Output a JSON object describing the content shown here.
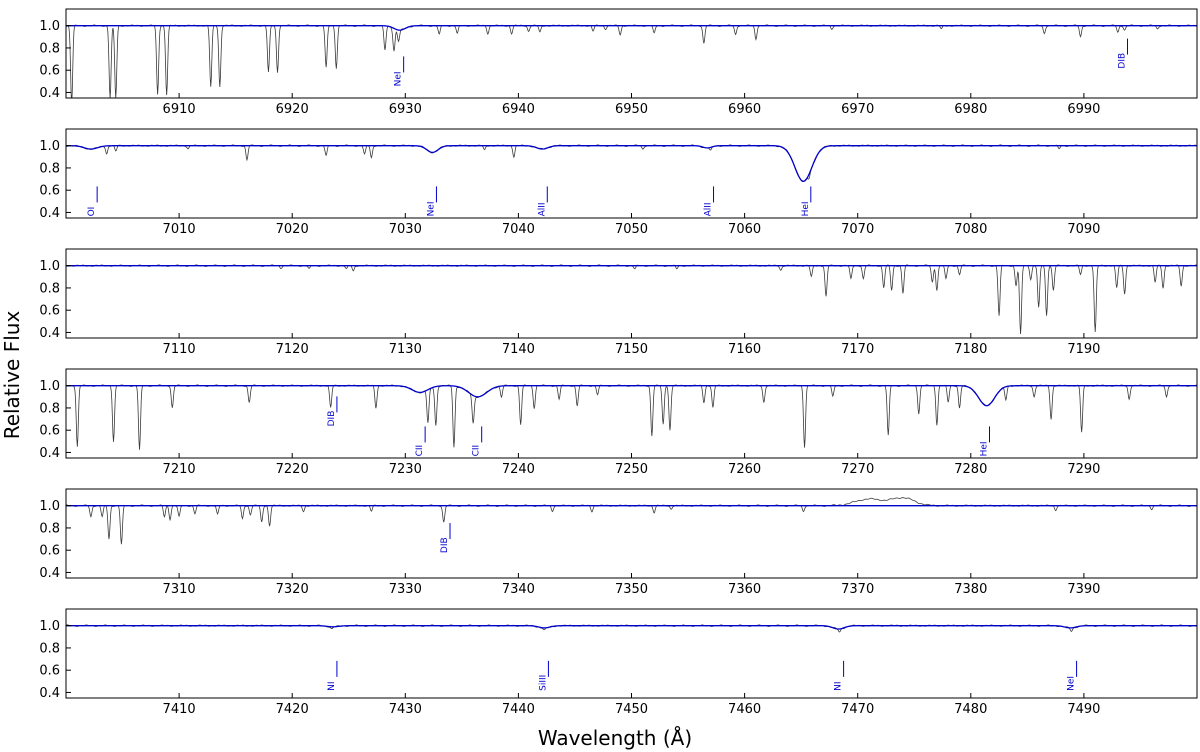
{
  "chart_data": {
    "type": "line",
    "xlabel": "Wavelength (Å)",
    "ylabel": "Relative Flux",
    "series": [
      {
        "color": "#3a3a3a",
        "role": "observed"
      },
      {
        "color": "#0000cc",
        "role": "model"
      }
    ],
    "ytick_labels": [
      "0.4",
      "0.6",
      "0.8",
      "1.0"
    ],
    "panels": [
      {
        "xlim": [
          6900,
          7000
        ],
        "ylim": [
          0.35,
          1.15
        ],
        "xticks": [
          6910,
          6920,
          6930,
          6940,
          6950,
          6960,
          6970,
          6980,
          6990
        ],
        "yticks": [
          0.4,
          0.6,
          0.8,
          1.0
        ],
        "model_lines": [
          {
            "center": 6929.5,
            "depth": 0.04,
            "width": 0.5
          }
        ],
        "telluric": [
          [
            6900.5,
            0.7
          ],
          [
            6903.9,
            0.65
          ],
          [
            6904.4,
            0.65
          ],
          [
            6908.1,
            0.62
          ],
          [
            6908.9,
            0.62
          ],
          [
            6912.8,
            0.55
          ],
          [
            6913.6,
            0.55
          ],
          [
            6917.9,
            0.42
          ],
          [
            6918.7,
            0.42
          ],
          [
            6923.0,
            0.38
          ],
          [
            6923.9,
            0.38
          ],
          [
            6928.2,
            0.22
          ],
          [
            6929.0,
            0.2
          ],
          [
            6929.4,
            0.1
          ],
          [
            6933.0,
            0.08
          ],
          [
            6934.6,
            0.07
          ],
          [
            6937.3,
            0.07
          ],
          [
            6939.4,
            0.07
          ],
          [
            6940.9,
            0.05
          ],
          [
            6941.9,
            0.06
          ],
          [
            6946.6,
            0.05
          ],
          [
            6947.7,
            0.03
          ],
          [
            6949.0,
            0.08
          ],
          [
            6952.0,
            0.07
          ],
          [
            6956.4,
            0.16
          ],
          [
            6959.2,
            0.08
          ],
          [
            6961.0,
            0.12
          ],
          [
            6967.7,
            0.03
          ],
          [
            6977.4,
            0.03
          ],
          [
            6986.5,
            0.07
          ],
          [
            6989.7,
            0.1
          ],
          [
            6993.0,
            0.06
          ],
          [
            6993.6,
            0.04
          ],
          [
            6996.5,
            0.03
          ]
        ],
        "labels": [
          {
            "text": "NeI",
            "x": 6929.5,
            "y": 0.58
          },
          {
            "text": "DIB",
            "x": 6993.5,
            "y": 0.74
          }
        ]
      },
      {
        "xlim": [
          7000,
          7100
        ],
        "ylim": [
          0.35,
          1.15
        ],
        "xticks": [
          7010,
          7020,
          7030,
          7040,
          7050,
          7060,
          7070,
          7080,
          7090
        ],
        "yticks": [
          0.4,
          0.6,
          0.8,
          1.0
        ],
        "model_lines": [
          {
            "center": 7002.2,
            "depth": 0.03,
            "width": 0.6
          },
          {
            "center": 7032.4,
            "depth": 0.06,
            "width": 0.5
          },
          {
            "center": 7042.1,
            "depth": 0.03,
            "width": 0.5
          },
          {
            "center": 7056.7,
            "depth": 0.02,
            "width": 0.4
          },
          {
            "center": 7065.2,
            "depth": 0.32,
            "width": 0.75
          }
        ],
        "telluric": [
          [
            7003.6,
            0.07
          ],
          [
            7004.4,
            0.05
          ],
          [
            7010.8,
            0.03
          ],
          [
            7016.0,
            0.13
          ],
          [
            7023.0,
            0.09
          ],
          [
            7026.4,
            0.08
          ],
          [
            7027.0,
            0.11
          ],
          [
            7037.0,
            0.04
          ],
          [
            7039.6,
            0.1
          ],
          [
            7051.0,
            0.03
          ],
          [
            7057.0,
            0.03
          ],
          [
            7065.7,
            0.04
          ],
          [
            7087.8,
            0.03
          ]
        ],
        "labels": [
          {
            "text": "OI",
            "x": 7002.4,
            "y": 0.49
          },
          {
            "text": "NeI",
            "x": 7032.4,
            "y": 0.49
          },
          {
            "text": "AlII",
            "x": 7042.2,
            "y": 0.49
          },
          {
            "text": "AlII",
            "x": 7056.9,
            "y": 0.49
          },
          {
            "text": "HeI",
            "x": 7065.5,
            "y": 0.49
          }
        ]
      },
      {
        "xlim": [
          7100,
          7200
        ],
        "ylim": [
          0.35,
          1.15
        ],
        "xticks": [
          7110,
          7120,
          7130,
          7140,
          7150,
          7160,
          7170,
          7180,
          7190
        ],
        "yticks": [
          0.4,
          0.6,
          0.8,
          1.0
        ],
        "model_lines": [],
        "telluric": [
          [
            7119.0,
            0.02
          ],
          [
            7121.5,
            0.03
          ],
          [
            7124.8,
            0.03
          ],
          [
            7125.4,
            0.05
          ],
          [
            7150.3,
            0.03
          ],
          [
            7154.0,
            0.03
          ],
          [
            7163.2,
            0.04
          ],
          [
            7165.9,
            0.1
          ],
          [
            7167.2,
            0.28
          ],
          [
            7169.4,
            0.12
          ],
          [
            7170.5,
            0.12
          ],
          [
            7172.3,
            0.2
          ],
          [
            7173.0,
            0.22
          ],
          [
            7174.0,
            0.25
          ],
          [
            7176.6,
            0.15
          ],
          [
            7177.0,
            0.22
          ],
          [
            7177.8,
            0.12
          ],
          [
            7179.0,
            0.08
          ],
          [
            7182.5,
            0.45
          ],
          [
            7184.0,
            0.18
          ],
          [
            7184.4,
            0.62
          ],
          [
            7185.3,
            0.12
          ],
          [
            7186.0,
            0.38
          ],
          [
            7186.7,
            0.45
          ],
          [
            7187.3,
            0.22
          ],
          [
            7189.7,
            0.08
          ],
          [
            7191.0,
            0.6
          ],
          [
            7192.9,
            0.2
          ],
          [
            7193.6,
            0.25
          ],
          [
            7196.3,
            0.15
          ],
          [
            7197.0,
            0.2
          ],
          [
            7198.6,
            0.18
          ]
        ],
        "labels": []
      },
      {
        "xlim": [
          7200,
          7300
        ],
        "ylim": [
          0.35,
          1.15
        ],
        "xticks": [
          7210,
          7220,
          7230,
          7240,
          7250,
          7260,
          7270,
          7280,
          7290
        ],
        "yticks": [
          0.4,
          0.6,
          0.8,
          1.0
        ],
        "model_lines": [
          {
            "center": 7231.3,
            "depth": 0.06,
            "width": 0.7
          },
          {
            "center": 7236.4,
            "depth": 0.1,
            "width": 0.8
          },
          {
            "center": 7281.4,
            "depth": 0.18,
            "width": 0.7
          }
        ],
        "telluric": [
          [
            7201.0,
            0.55
          ],
          [
            7204.2,
            0.5
          ],
          [
            7206.5,
            0.58
          ],
          [
            7209.4,
            0.2
          ],
          [
            7216.2,
            0.15
          ],
          [
            7223.4,
            0.2
          ],
          [
            7227.4,
            0.2
          ],
          [
            7232.0,
            0.3
          ],
          [
            7232.7,
            0.35
          ],
          [
            7234.3,
            0.55
          ],
          [
            7236.0,
            0.25
          ],
          [
            7238.5,
            0.1
          ],
          [
            7240.2,
            0.35
          ],
          [
            7241.4,
            0.2
          ],
          [
            7243.6,
            0.12
          ],
          [
            7245.2,
            0.18
          ],
          [
            7247.0,
            0.08
          ],
          [
            7251.8,
            0.45
          ],
          [
            7252.8,
            0.35
          ],
          [
            7253.4,
            0.4
          ],
          [
            7256.4,
            0.15
          ],
          [
            7257.2,
            0.2
          ],
          [
            7261.7,
            0.15
          ],
          [
            7265.3,
            0.55
          ],
          [
            7267.8,
            0.1
          ],
          [
            7272.7,
            0.45
          ],
          [
            7275.4,
            0.25
          ],
          [
            7277.0,
            0.35
          ],
          [
            7278.0,
            0.15
          ],
          [
            7279.0,
            0.2
          ],
          [
            7283.1,
            0.12
          ],
          [
            7285.6,
            0.1
          ],
          [
            7287.1,
            0.3
          ],
          [
            7289.8,
            0.42
          ],
          [
            7294.0,
            0.12
          ],
          [
            7297.3,
            0.1
          ]
        ],
        "labels": [
          {
            "text": "DIB",
            "x": 7223.6,
            "y": 0.76
          },
          {
            "text": "CII",
            "x": 7231.4,
            "y": 0.49
          },
          {
            "text": "CII",
            "x": 7236.4,
            "y": 0.49
          },
          {
            "text": "HeI",
            "x": 7281.3,
            "y": 0.49
          }
        ]
      },
      {
        "xlim": [
          7300,
          7400
        ],
        "ylim": [
          0.35,
          1.15
        ],
        "xticks": [
          7310,
          7320,
          7330,
          7340,
          7350,
          7360,
          7370,
          7380,
          7390
        ],
        "yticks": [
          0.4,
          0.6,
          0.8,
          1.0
        ],
        "model_lines": [],
        "telluric": [
          [
            7302.2,
            0.1
          ],
          [
            7303.2,
            0.1
          ],
          [
            7303.8,
            0.3
          ],
          [
            7304.9,
            0.35
          ],
          [
            7308.7,
            0.1
          ],
          [
            7309.2,
            0.12
          ],
          [
            7310.0,
            0.1
          ],
          [
            7311.4,
            0.07
          ],
          [
            7313.4,
            0.08
          ],
          [
            7315.6,
            0.12
          ],
          [
            7316.3,
            0.08
          ],
          [
            7317.3,
            0.15
          ],
          [
            7318.0,
            0.18
          ],
          [
            7321.0,
            0.05
          ],
          [
            7327.0,
            0.05
          ],
          [
            7333.4,
            0.15
          ],
          [
            7343.0,
            0.05
          ],
          [
            7346.5,
            0.05
          ],
          [
            7352.0,
            0.06
          ],
          [
            7353.5,
            0.03
          ],
          [
            7365.2,
            0.05
          ],
          [
            7387.5,
            0.04
          ],
          [
            7396.0,
            0.03
          ]
        ],
        "bumps": [
          [
            7371.0,
            0.06,
            1.2
          ],
          [
            7374.0,
            0.07,
            1.0
          ]
        ],
        "labels": [
          {
            "text": "DIB",
            "x": 7333.6,
            "y": 0.7
          }
        ]
      },
      {
        "xlim": [
          7400,
          7500
        ],
        "ylim": [
          0.35,
          1.15
        ],
        "xticks": [
          7410,
          7420,
          7430,
          7440,
          7450,
          7460,
          7470,
          7480,
          7490
        ],
        "yticks": [
          0.4,
          0.6,
          0.8,
          1.0
        ],
        "model_lines": [
          {
            "center": 7423.6,
            "depth": 0.01,
            "width": 0.5
          },
          {
            "center": 7442.3,
            "depth": 0.02,
            "width": 0.5
          },
          {
            "center": 7468.3,
            "depth": 0.03,
            "width": 0.5
          },
          {
            "center": 7488.8,
            "depth": 0.02,
            "width": 0.5
          }
        ],
        "telluric": [
          [
            7423.5,
            0.02
          ],
          [
            7442.3,
            0.02
          ],
          [
            7468.4,
            0.03
          ],
          [
            7488.9,
            0.03
          ]
        ],
        "labels": [
          {
            "text": "NI",
            "x": 7423.6,
            "y": 0.54
          },
          {
            "text": "SiIII",
            "x": 7442.3,
            "y": 0.54
          },
          {
            "text": "NI",
            "x": 7468.4,
            "y": 0.54
          },
          {
            "text": "NeI",
            "x": 7489.0,
            "y": 0.54
          }
        ]
      }
    ]
  }
}
